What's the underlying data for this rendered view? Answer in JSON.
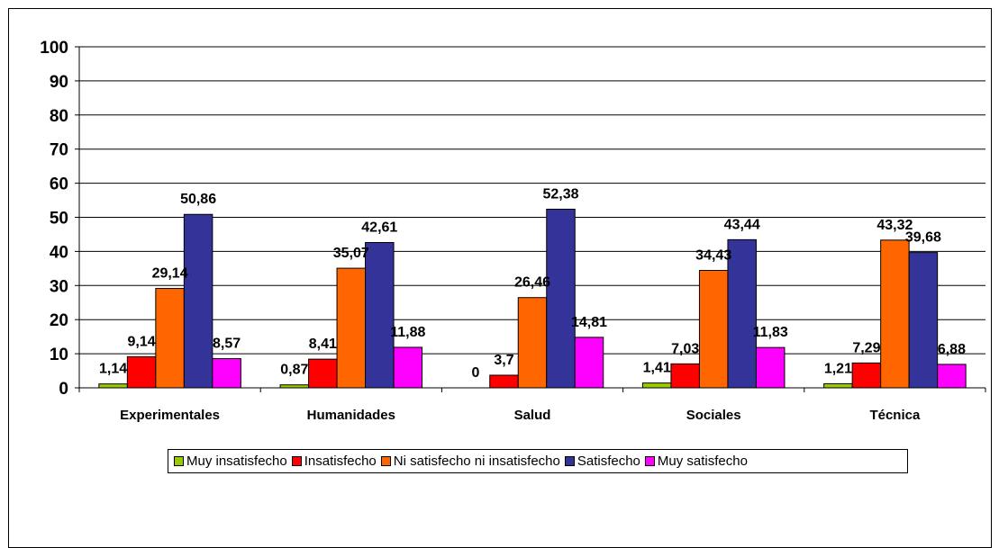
{
  "chart_data": {
    "type": "bar",
    "categories": [
      "Experimentales",
      "Humanidades",
      "Salud",
      "Sociales",
      "Técnica"
    ],
    "series": [
      {
        "name": "Muy insatisfecho",
        "color": "#99CC00",
        "values": [
          1.14,
          0.87,
          0,
          1.41,
          1.21
        ],
        "labels": [
          "1,14",
          "0,87",
          "0",
          "1,41",
          "1,21"
        ]
      },
      {
        "name": "Insatisfecho",
        "color": "#FF0000",
        "values": [
          9.14,
          8.41,
          3.7,
          7.03,
          7.29
        ],
        "labels": [
          "9,14",
          "8,41",
          "3,7",
          "7,03",
          "7,29"
        ]
      },
      {
        "name": "Ni satisfecho ni insatisfecho",
        "color": "#FF6600",
        "values": [
          29.14,
          35.07,
          26.46,
          34.43,
          43.32
        ],
        "labels": [
          "29,14",
          "35,07",
          "26,46",
          "34,43",
          "43,32"
        ]
      },
      {
        "name": "Satisfecho",
        "color": "#333399",
        "values": [
          50.86,
          42.61,
          52.38,
          43.44,
          39.68
        ],
        "labels": [
          "50,86",
          "42,61",
          "52,38",
          "43,44",
          "39,68"
        ]
      },
      {
        "name": "Muy satisfecho",
        "color": "#FF00FF",
        "values": [
          8.57,
          11.88,
          14.81,
          11.83,
          6.88
        ],
        "labels": [
          "8,57",
          "11,88",
          "14,81",
          "11,83",
          "6,88"
        ]
      }
    ],
    "yticks": [
      "0",
      "10",
      "20",
      "30",
      "40",
      "50",
      "60",
      "70",
      "80",
      "90",
      "100"
    ],
    "ylim": [
      0,
      100
    ],
    "grid": true,
    "legend_position": "bottom"
  }
}
